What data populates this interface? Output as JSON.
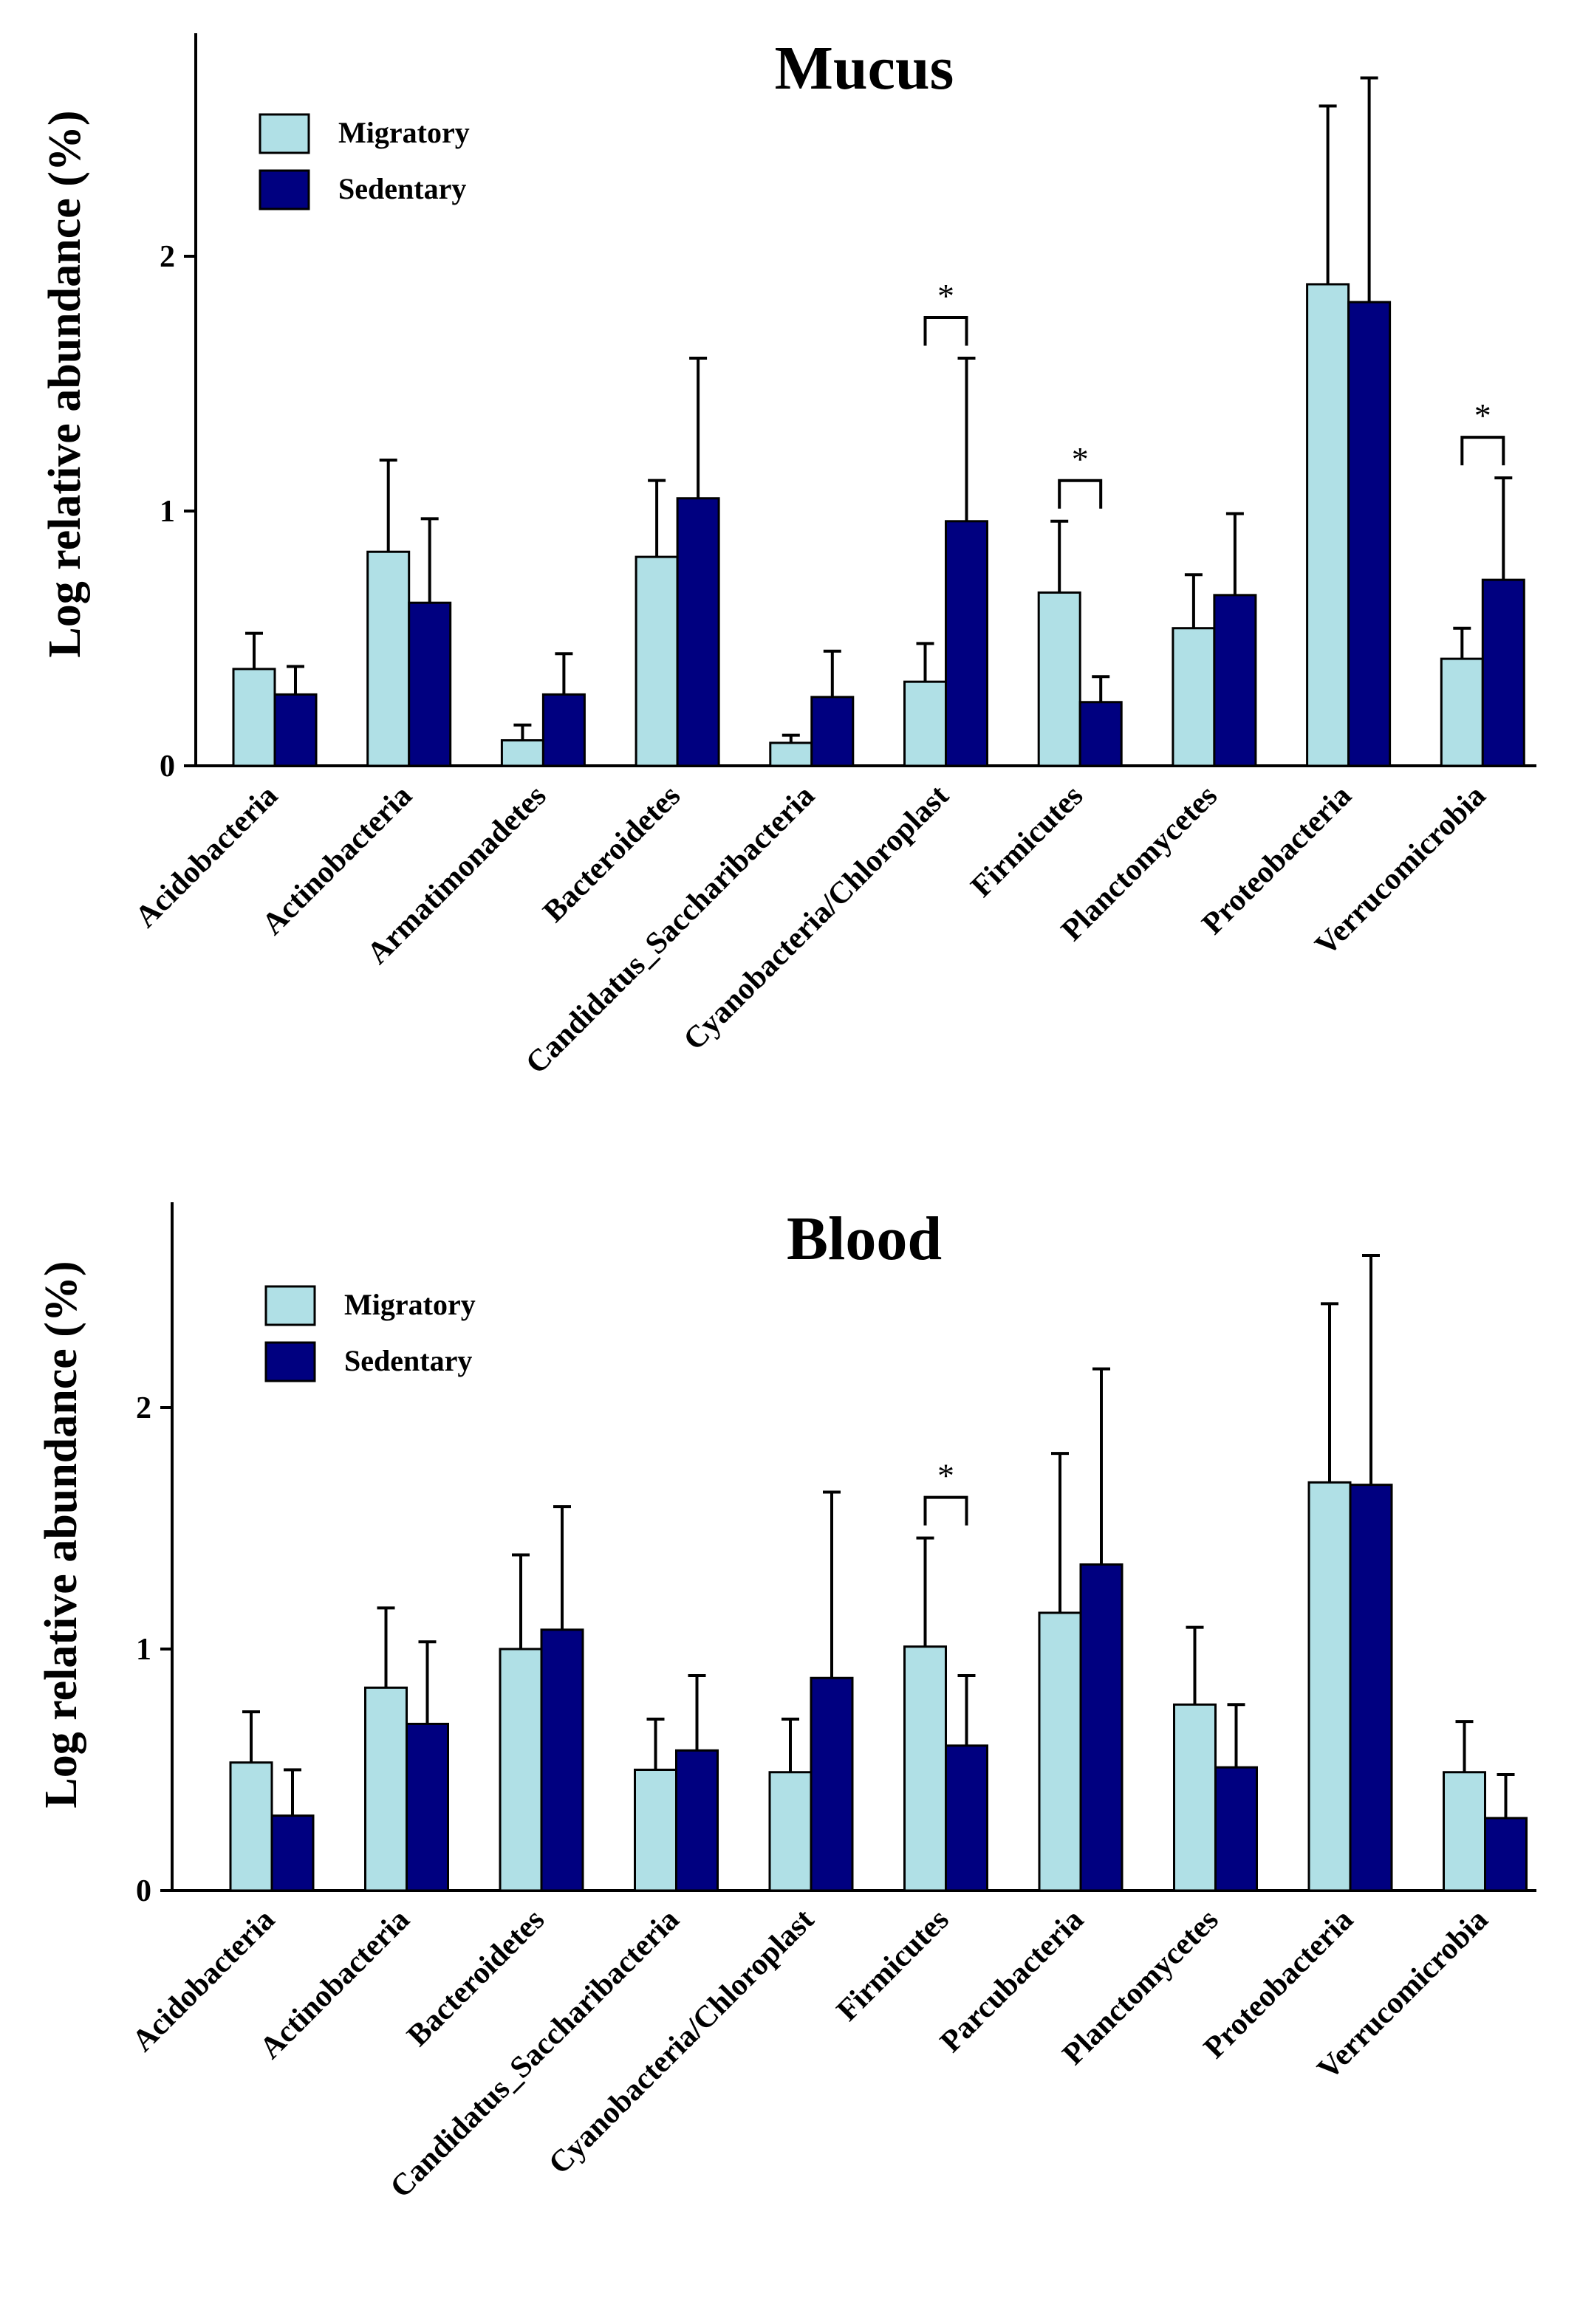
{
  "colors": {
    "migratory": "#b0e0e6",
    "sedentary": "#000080",
    "stroke": "#000000"
  },
  "chart_data": [
    {
      "type": "bar",
      "title": "Mucus",
      "ylabel": "Log relative abundance (%)",
      "xlabel": "",
      "ylim": [
        0,
        2.85
      ],
      "yticks": [
        0,
        1,
        2
      ],
      "ytick_labels": [
        "0",
        "1",
        "2"
      ],
      "legend": {
        "position": "top-left",
        "entries": [
          "Migratory",
          "Sedentary"
        ]
      },
      "categories": [
        "Acidobacteria",
        "Actinobacteria",
        "Armatimonadetes",
        "Bacteroidetes",
        "Candidatus_Saccharibacteria",
        "Cyanobacteria/Chloroplast",
        "Firmicutes",
        "Planctomycetes",
        "Proteobacteria",
        "Verrucomicrobia"
      ],
      "series": [
        {
          "name": "Migratory",
          "values": [
            0.38,
            0.84,
            0.1,
            0.82,
            0.09,
            0.33,
            0.68,
            0.54,
            1.89,
            0.42
          ],
          "errors": [
            0.14,
            0.36,
            0.06,
            0.3,
            0.03,
            0.15,
            0.28,
            0.21,
            0.7,
            0.12
          ]
        },
        {
          "name": "Sedentary",
          "values": [
            0.28,
            0.64,
            0.28,
            1.05,
            0.27,
            0.96,
            0.25,
            0.67,
            1.82,
            0.73
          ],
          "errors": [
            0.11,
            0.33,
            0.16,
            0.55,
            0.18,
            0.64,
            0.1,
            0.32,
            0.88,
            0.4
          ]
        }
      ],
      "significance": [
        {
          "category_index": 5,
          "label": "*"
        },
        {
          "category_index": 6,
          "label": "*"
        },
        {
          "category_index": 9,
          "label": "*"
        }
      ]
    },
    {
      "type": "bar",
      "title": "Blood",
      "ylabel": "Log relative abundance (%)",
      "xlabel": "",
      "ylim": [
        0,
        2.85
      ],
      "yticks": [
        0,
        1,
        2
      ],
      "ytick_labels": [
        "0",
        "1",
        "2"
      ],
      "legend": {
        "position": "top-left",
        "entries": [
          "Migratory",
          "Sedentary"
        ]
      },
      "categories": [
        "Acidobacteria",
        "Actinobacteria",
        "Bacteroidetes",
        "Candidatus_Saccharibacteria",
        "Cyanobacteria/Chloroplast",
        "Firmicutes",
        "Parcubacteria",
        "Planctomycetes",
        "Proteobacteria",
        "Verrucomicrobia"
      ],
      "series": [
        {
          "name": "Migratory",
          "values": [
            0.53,
            0.84,
            1.0,
            0.5,
            0.49,
            1.01,
            1.15,
            0.77,
            1.69,
            0.49
          ],
          "errors": [
            0.21,
            0.33,
            0.39,
            0.21,
            0.22,
            0.45,
            0.66,
            0.32,
            0.74,
            0.21
          ]
        },
        {
          "name": "Sedentary",
          "values": [
            0.31,
            0.69,
            1.08,
            0.58,
            0.88,
            0.6,
            1.35,
            0.51,
            1.68,
            0.3
          ],
          "errors": [
            0.19,
            0.34,
            0.51,
            0.31,
            0.77,
            0.29,
            0.81,
            0.26,
            0.95,
            0.18
          ]
        }
      ],
      "significance": [
        {
          "category_index": 5,
          "label": "*"
        }
      ]
    }
  ]
}
